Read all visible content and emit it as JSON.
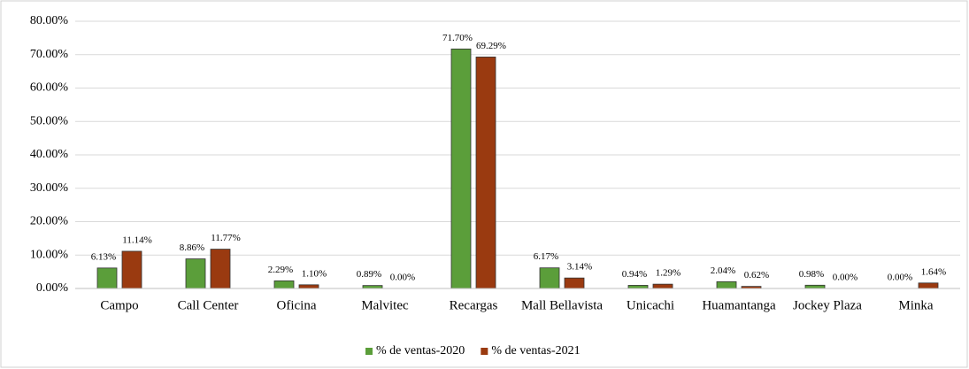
{
  "chart_data": {
    "type": "bar",
    "categories": [
      "Campo",
      "Call Center",
      "Oficina",
      "Malvitec",
      "Recargas",
      "Mall Bellavista",
      "Unicachi",
      "Huamantanga",
      "Jockey Plaza",
      "Minka"
    ],
    "series": [
      {
        "name": "% de ventas-2020",
        "color": "#5b9e3a",
        "values": [
          6.13,
          8.86,
          2.29,
          0.89,
          71.7,
          6.17,
          0.94,
          2.04,
          0.98,
          0
        ],
        "value_labels": [
          "6.13%",
          "8.86%",
          "2.29%",
          "0.89%",
          "71.70%",
          "6.17%",
          "0.94%",
          "2.04%",
          "0.98%",
          "0.00%"
        ]
      },
      {
        "name": "% de ventas-2021",
        "color": "#9a3a10",
        "values": [
          11.14,
          11.77,
          1.1,
          0,
          69.29,
          3.14,
          1.29,
          0.62,
          0,
          1.64
        ],
        "value_labels": [
          "11.14%",
          "11.77%",
          "1.10%",
          "0.00%",
          "69.29%",
          "3.14%",
          "1.29%",
          "0.62%",
          "0.00%",
          "1.64%"
        ]
      }
    ],
    "ylim": [
      0,
      80
    ],
    "yticks": [
      {
        "value": 0,
        "label": "0.00%"
      },
      {
        "value": 10,
        "label": "10.00%"
      },
      {
        "value": 20,
        "label": "20.00%"
      },
      {
        "value": 30,
        "label": "30.00%"
      },
      {
        "value": 40,
        "label": "40.00%"
      },
      {
        "value": 50,
        "label": "50.00%"
      },
      {
        "value": 60,
        "label": "60.00%"
      },
      {
        "value": 70,
        "label": "70.00%"
      },
      {
        "value": 80,
        "label": "80.00%"
      }
    ],
    "grid": true,
    "legend": "bottom"
  }
}
